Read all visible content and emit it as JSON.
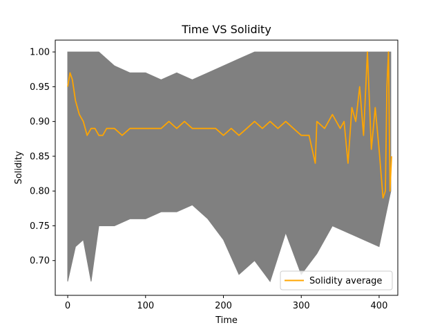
{
  "chart_data": {
    "type": "line",
    "title": "Time VS Solidity",
    "xlabel": "Time",
    "ylabel": "Solidity",
    "xlim": [
      -16,
      424
    ],
    "ylim": [
      0.65,
      1.017
    ],
    "xticks": [
      0,
      100,
      200,
      300,
      400
    ],
    "xtick_labels": [
      "0",
      "100",
      "200",
      "300",
      "400"
    ],
    "yticks": [
      0.7,
      0.75,
      0.8,
      0.85,
      0.9,
      0.95,
      1.0
    ],
    "ytick_labels": [
      "0.70",
      "0.75",
      "0.80",
      "0.85",
      "0.90",
      "0.95",
      "1.00"
    ],
    "grid": false,
    "legend_position": "lower-right",
    "colors": {
      "average": "#ffa500",
      "band": "#808080"
    },
    "band": {
      "x": [
        0,
        10,
        20,
        30,
        40,
        60,
        80,
        100,
        120,
        140,
        160,
        180,
        200,
        220,
        240,
        260,
        280,
        300,
        320,
        340,
        360,
        380,
        400,
        415
      ],
      "max": [
        1.0,
        1.0,
        1.0,
        1.0,
        1.0,
        0.98,
        0.97,
        0.97,
        0.96,
        0.97,
        0.96,
        0.97,
        0.98,
        0.99,
        1.0,
        1.0,
        1.0,
        1.0,
        1.0,
        1.0,
        1.0,
        1.0,
        1.0,
        1.0
      ],
      "min": [
        0.67,
        0.72,
        0.73,
        0.67,
        0.75,
        0.75,
        0.76,
        0.76,
        0.77,
        0.77,
        0.78,
        0.76,
        0.73,
        0.68,
        0.7,
        0.67,
        0.74,
        0.68,
        0.71,
        0.75,
        0.74,
        0.73,
        0.72,
        0.8
      ]
    },
    "series": [
      {
        "name": "Solidity average",
        "x": [
          0,
          3,
          6,
          10,
          15,
          20,
          25,
          30,
          35,
          40,
          45,
          50,
          60,
          70,
          80,
          90,
          100,
          110,
          120,
          130,
          140,
          150,
          160,
          170,
          180,
          190,
          200,
          210,
          220,
          230,
          240,
          250,
          260,
          270,
          280,
          290,
          300,
          310,
          318,
          320,
          330,
          340,
          350,
          355,
          360,
          365,
          370,
          375,
          380,
          385,
          390,
          395,
          400,
          405,
          408,
          410,
          412,
          414,
          416
        ],
        "values": [
          0.95,
          0.97,
          0.96,
          0.93,
          0.91,
          0.9,
          0.88,
          0.89,
          0.89,
          0.88,
          0.88,
          0.89,
          0.89,
          0.88,
          0.89,
          0.89,
          0.89,
          0.89,
          0.89,
          0.9,
          0.89,
          0.9,
          0.89,
          0.89,
          0.89,
          0.89,
          0.88,
          0.89,
          0.88,
          0.89,
          0.9,
          0.89,
          0.9,
          0.89,
          0.9,
          0.89,
          0.88,
          0.88,
          0.84,
          0.9,
          0.89,
          0.91,
          0.89,
          0.9,
          0.84,
          0.92,
          0.9,
          0.95,
          0.88,
          1.0,
          0.86,
          0.92,
          0.86,
          0.79,
          0.8,
          0.95,
          1.0,
          0.8,
          0.85
        ]
      }
    ]
  }
}
